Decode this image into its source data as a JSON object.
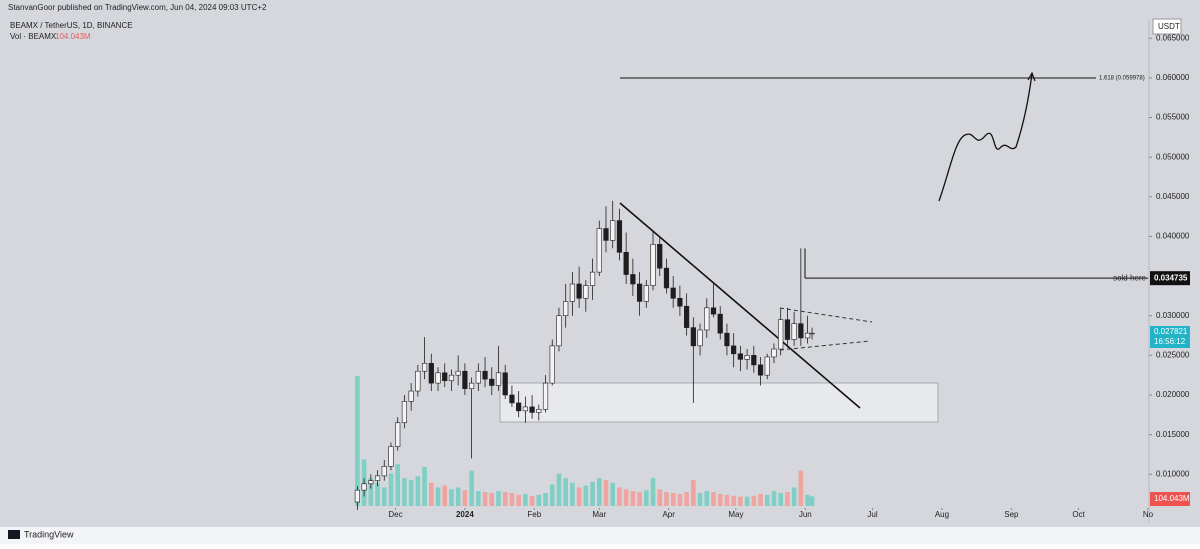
{
  "chart_data": {
    "type": "candlestick",
    "header": "StanvanGoor published on TradingView.com, Jun 04, 2024 09:03 UTC+2",
    "title": "BEAMX / TetherUS, 1D, BINANCE",
    "volume_title": "Vol · BEAMX",
    "last_volume_label": "104.043M",
    "currency": "USDT",
    "brand": "TradingView",
    "x": [
      0,
      3,
      6,
      9,
      12,
      15,
      18,
      21,
      24,
      27,
      30,
      33,
      36,
      39,
      42,
      45,
      48,
      51,
      54,
      57,
      60,
      63,
      66,
      69,
      72,
      75,
      78,
      81,
      84,
      87,
      90,
      93,
      96,
      99,
      102,
      105,
      108,
      111,
      114,
      117,
      120,
      123,
      126,
      129,
      132,
      135,
      138,
      141,
      144,
      147,
      150,
      153,
      156,
      159,
      162,
      165,
      168,
      171,
      174,
      177,
      180,
      183,
      186,
      189,
      192,
      195,
      198,
      201,
      203
    ],
    "open": [
      0.0065,
      0.008,
      0.0088,
      0.0092,
      0.0098,
      0.011,
      0.0135,
      0.0165,
      0.0192,
      0.0205,
      0.023,
      0.024,
      0.0215,
      0.0228,
      0.0218,
      0.0225,
      0.023,
      0.0208,
      0.0215,
      0.023,
      0.022,
      0.0212,
      0.0228,
      0.02,
      0.019,
      0.018,
      0.0185,
      0.0178,
      0.0182,
      0.0215,
      0.0262,
      0.03,
      0.0318,
      0.034,
      0.0322,
      0.0338,
      0.0355,
      0.041,
      0.0395,
      0.042,
      0.038,
      0.0352,
      0.034,
      0.0318,
      0.0338,
      0.039,
      0.036,
      0.0335,
      0.0322,
      0.0312,
      0.0285,
      0.0262,
      0.0282,
      0.031,
      0.0302,
      0.0278,
      0.0262,
      0.0252,
      0.0245,
      0.025,
      0.0238,
      0.0225,
      0.0248,
      0.0258,
      0.0295,
      0.027,
      0.029,
      0.0272,
      0.0278
    ],
    "high": [
      0.0085,
      0.0095,
      0.01,
      0.0105,
      0.0118,
      0.014,
      0.0172,
      0.02,
      0.0215,
      0.0238,
      0.0273,
      0.0252,
      0.0235,
      0.024,
      0.0232,
      0.025,
      0.024,
      0.0222,
      0.024,
      0.0248,
      0.0235,
      0.0262,
      0.0238,
      0.0212,
      0.0205,
      0.0198,
      0.02,
      0.0188,
      0.0225,
      0.027,
      0.031,
      0.034,
      0.0355,
      0.0362,
      0.0345,
      0.0372,
      0.042,
      0.0438,
      0.0445,
      0.0435,
      0.0405,
      0.0372,
      0.0355,
      0.0345,
      0.0408,
      0.0398,
      0.0372,
      0.035,
      0.0338,
      0.0328,
      0.0298,
      0.029,
      0.0322,
      0.034,
      0.0312,
      0.029,
      0.0278,
      0.0262,
      0.0258,
      0.0262,
      0.0248,
      0.0252,
      0.0265,
      0.031,
      0.031,
      0.0305,
      0.0385,
      0.03,
      0.0285
    ],
    "low": [
      0.0055,
      0.0072,
      0.0082,
      0.0085,
      0.0092,
      0.0105,
      0.013,
      0.0158,
      0.018,
      0.0198,
      0.022,
      0.0205,
      0.0205,
      0.021,
      0.0205,
      0.0212,
      0.02,
      0.012,
      0.0205,
      0.021,
      0.02,
      0.0205,
      0.0195,
      0.0185,
      0.0172,
      0.0165,
      0.017,
      0.0168,
      0.0178,
      0.0212,
      0.0255,
      0.0285,
      0.03,
      0.031,
      0.0305,
      0.032,
      0.035,
      0.038,
      0.0385,
      0.037,
      0.034,
      0.0325,
      0.03,
      0.031,
      0.0332,
      0.035,
      0.0328,
      0.031,
      0.03,
      0.0275,
      0.019,
      0.025,
      0.0272,
      0.0298,
      0.027,
      0.025,
      0.0235,
      0.023,
      0.0232,
      0.0228,
      0.0212,
      0.022,
      0.024,
      0.025,
      0.026,
      0.0262,
      0.0262,
      0.0265,
      0.027
    ],
    "close": [
      0.008,
      0.0088,
      0.0092,
      0.0098,
      0.011,
      0.0135,
      0.0165,
      0.0192,
      0.0205,
      0.023,
      0.024,
      0.0215,
      0.0228,
      0.0218,
      0.0225,
      0.023,
      0.0208,
      0.0215,
      0.023,
      0.022,
      0.0212,
      0.0228,
      0.02,
      0.019,
      0.018,
      0.0185,
      0.0178,
      0.0182,
      0.0215,
      0.0262,
      0.03,
      0.0318,
      0.034,
      0.0322,
      0.0338,
      0.0355,
      0.041,
      0.0395,
      0.042,
      0.038,
      0.0352,
      0.034,
      0.0318,
      0.0338,
      0.039,
      0.036,
      0.0335,
      0.0322,
      0.0312,
      0.0285,
      0.0262,
      0.0282,
      0.031,
      0.0302,
      0.0278,
      0.0262,
      0.0252,
      0.0245,
      0.025,
      0.0238,
      0.0225,
      0.0248,
      0.0258,
      0.0295,
      0.027,
      0.029,
      0.0272,
      0.0278,
      0.0278
    ],
    "volume": [
      1400,
      500,
      300,
      250,
      200,
      350,
      450,
      300,
      280,
      320,
      420,
      250,
      200,
      220,
      180,
      200,
      170,
      380,
      160,
      150,
      140,
      160,
      150,
      140,
      120,
      130,
      110,
      120,
      140,
      230,
      350,
      300,
      250,
      200,
      220,
      260,
      300,
      280,
      250,
      200,
      180,
      160,
      150,
      170,
      300,
      180,
      150,
      140,
      130,
      150,
      280,
      140,
      160,
      150,
      130,
      120,
      110,
      100,
      100,
      110,
      130,
      120,
      160,
      140,
      150,
      200,
      380,
      120,
      104.043
    ],
    "xlim": [
      -156,
      353
    ],
    "xticks": [
      {
        "value": 17,
        "label": "Dec"
      },
      {
        "value": 48,
        "label": "2024"
      },
      {
        "value": 79,
        "label": "Feb"
      },
      {
        "value": 108,
        "label": "Mar"
      },
      {
        "value": 139,
        "label": "Apr"
      },
      {
        "value": 169,
        "label": "May"
      },
      {
        "value": 200,
        "label": "Jun"
      },
      {
        "value": 230,
        "label": "Jul"
      },
      {
        "value": 261,
        "label": "Aug"
      },
      {
        "value": 292,
        "label": "Sep"
      },
      {
        "value": 322,
        "label": "Oct"
      },
      {
        "value": 353,
        "label": "No"
      }
    ],
    "ylim": [
      0.006,
      0.0673
    ],
    "yticks": [
      {
        "value": 0.01,
        "label": "0.010000"
      },
      {
        "value": 0.015,
        "label": "0.015000"
      },
      {
        "value": 0.02,
        "label": "0.020000"
      },
      {
        "value": 0.025,
        "label": "0.025000"
      },
      {
        "value": 0.03,
        "label": "0.030000"
      },
      {
        "value": 0.04,
        "label": "0.040000"
      },
      {
        "value": 0.045,
        "label": "0.045000"
      },
      {
        "value": 0.05,
        "label": "0.050000"
      },
      {
        "value": 0.055,
        "label": "0.055000"
      },
      {
        "value": 0.06,
        "label": "0.060000"
      },
      {
        "value": 0.065,
        "label": "0.065000"
      }
    ],
    "current_price": {
      "value": 0.027821,
      "label": "0.027821",
      "countdown": "16:56:12"
    },
    "fib_level": {
      "value": 0.059978,
      "label": "1.618 (0.059978)"
    },
    "sold_level": {
      "value": 0.034735,
      "label": "0.034735",
      "text": "sold here"
    },
    "colors": {
      "up": "#f4f4f4",
      "down": "#1e1e1e",
      "wick": "#1e1e1e",
      "volume_up": "#7fcfc5",
      "volume_down": "#f0a4a0",
      "price_tag": "#22b3c6"
    }
  }
}
